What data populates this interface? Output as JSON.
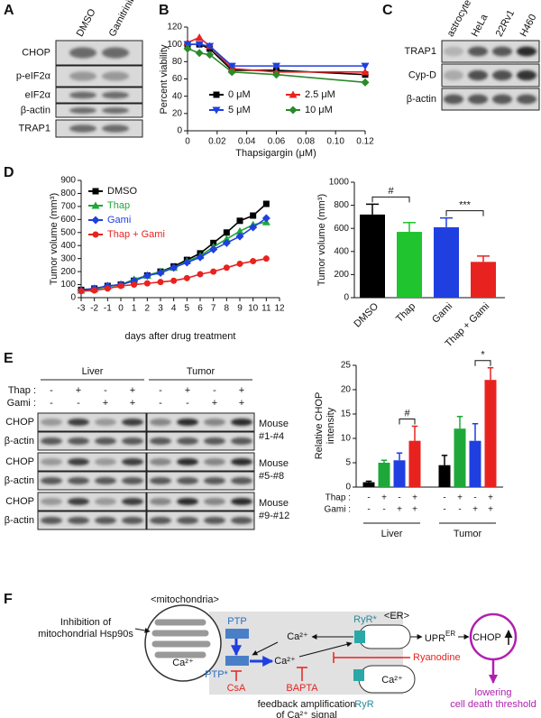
{
  "panel_labels": [
    "A",
    "B",
    "C",
    "D",
    "E",
    "F"
  ],
  "blot_a": {
    "columns": [
      "DMSO",
      "Gamitrinib"
    ],
    "rows": [
      "CHOP",
      "p-eIF2α",
      "eIF2α",
      "β-actin",
      "TRAP1"
    ]
  },
  "blot_c": {
    "columns": [
      "astrocyte",
      "HeLa",
      "22Rv1",
      "H460"
    ],
    "rows": [
      "TRAP1",
      "Cyp-D",
      "β-actin"
    ]
  },
  "blot_e": {
    "groups": [
      "Liver",
      "Tumor"
    ],
    "treatments": [
      {
        "name": "Thap :",
        "signs": [
          "-",
          "+",
          "-",
          "+",
          "-",
          "+",
          "-",
          "+"
        ]
      },
      {
        "name": "Gami :",
        "signs": [
          "-",
          "-",
          "+",
          "+",
          "-",
          "-",
          "+",
          "+"
        ]
      }
    ],
    "rows": [
      "CHOP",
      "β-actin",
      "CHOP",
      "β-actin",
      "CHOP",
      "β-actin"
    ],
    "mice": [
      [
        "Mouse",
        "#1-#4"
      ],
      [
        "Mouse",
        "#5-#8"
      ],
      [
        "Mouse",
        "#9-#12"
      ]
    ]
  },
  "chart_data": [
    {
      "type": "line",
      "ylabel": "Percent viability",
      "xlabel": "Thapsigargin (μM)",
      "xlim": [
        0,
        0.12
      ],
      "xticks": [
        0,
        0.02,
        0.04,
        0.06,
        0.08,
        {
          "value": 0.1,
          "label": "0.10"
        },
        0.12
      ],
      "ylim": [
        0,
        120
      ],
      "yticks": [
        0,
        20,
        40,
        60,
        80,
        100,
        120
      ],
      "x": [
        0,
        0.008,
        0.015,
        0.03,
        0.06,
        0.12
      ],
      "series": [
        {
          "name": "0 μM",
          "color": "#000000",
          "marker": "square",
          "values": [
            100,
            100,
            95,
            70,
            70,
            65
          ]
        },
        {
          "name": "2.5 μM",
          "color": "#e8231f",
          "marker": "triangle",
          "values": [
            102,
            108,
            98,
            72,
            68,
            68
          ]
        },
        {
          "name": "5 μM",
          "color": "#1f3fe0",
          "marker": "triangle-down",
          "values": [
            100,
            100,
            98,
            75,
            75,
            75
          ]
        },
        {
          "name": "10 μM",
          "color": "#2a8a2a",
          "marker": "diamond",
          "values": [
            95,
            90,
            88,
            68,
            65,
            56
          ]
        }
      ]
    },
    {
      "type": "line",
      "ylabel": "Tumor volume (mm³)",
      "xlabel": "days after drug treatment",
      "xlim": [
        -3,
        12
      ],
      "xticks": [
        -3,
        -2,
        -1,
        0,
        1,
        2,
        3,
        4,
        5,
        6,
        7,
        8,
        9,
        10,
        11,
        12
      ],
      "ylim": [
        0,
        900
      ],
      "yticks": [
        0,
        100,
        200,
        300,
        400,
        500,
        600,
        700,
        800,
        900
      ],
      "x": [
        -3,
        -2,
        -1,
        0,
        1,
        2,
        3,
        4,
        5,
        6,
        7,
        8,
        9,
        10,
        11
      ],
      "series": [
        {
          "name": "DMSO",
          "color": "#000000",
          "marker": "square",
          "values": [
            60,
            70,
            90,
            100,
            130,
            170,
            200,
            240,
            290,
            340,
            420,
            500,
            590,
            630,
            720
          ]
        },
        {
          "name": "Thap",
          "color": "#1fa83a",
          "marker": "triangle",
          "values": [
            55,
            65,
            85,
            100,
            140,
            170,
            200,
            230,
            280,
            320,
            390,
            450,
            510,
            560,
            580
          ]
        },
        {
          "name": "Gami",
          "color": "#1f3fe0",
          "marker": "diamond",
          "values": [
            55,
            70,
            90,
            100,
            130,
            170,
            190,
            230,
            270,
            310,
            370,
            420,
            470,
            540,
            610
          ]
        },
        {
          "name": "Thap + Gami",
          "color": "#e8231f",
          "marker": "circle",
          "values": [
            50,
            55,
            70,
            90,
            100,
            110,
            120,
            130,
            150,
            180,
            200,
            230,
            260,
            280,
            300
          ]
        }
      ]
    },
    {
      "type": "bar",
      "ylabel": "Tumor volume (mm³)",
      "categories": [
        "DMSO",
        "Thap",
        "Gami",
        "Thap + Gami"
      ],
      "values": [
        720,
        570,
        610,
        310
      ],
      "errors": [
        90,
        80,
        80,
        50
      ],
      "colors": [
        "#000000",
        "#1fc42f",
        "#1f3fe0",
        "#e8231f"
      ],
      "ylim": [
        0,
        1000
      ],
      "yticks": [
        0,
        200,
        400,
        600,
        800,
        1000
      ],
      "annotations": [
        "#",
        "***"
      ]
    },
    {
      "type": "bar",
      "ylabel": [
        "Relative CHOP",
        "intensity"
      ],
      "categories": [
        null,
        null,
        null,
        null,
        null,
        null,
        null,
        null
      ],
      "values": [
        1,
        5,
        5.5,
        9.5,
        4.5,
        12,
        9.5,
        22
      ],
      "errors": [
        0.2,
        0.5,
        1.5,
        3,
        2,
        2.5,
        3.5,
        2.5
      ],
      "colors": [
        "#000000",
        "#1fa83a",
        "#1f3fe0",
        "#e8231f",
        "#000000",
        "#1fa83a",
        "#1f3fe0",
        "#e8231f"
      ],
      "ylim": [
        0,
        25
      ],
      "yticks": [
        0,
        5,
        10,
        15,
        20,
        25
      ],
      "x_rows": [
        {
          "name": "Thap :",
          "signs": [
            "-",
            "+",
            "-",
            "+",
            "-",
            "+",
            "-",
            "+"
          ]
        },
        {
          "name": "Gami :",
          "signs": [
            "-",
            "-",
            "+",
            "+",
            "-",
            "-",
            "+",
            "+"
          ]
        }
      ],
      "groups": [
        "Liver",
        "Tumor"
      ],
      "annotations": [
        "#",
        "*"
      ]
    }
  ],
  "diagram": {
    "mitochondria_label": "<mitochondria>",
    "er_label": "<ER>",
    "inhibition": [
      "Inhibition of",
      "mitochondrial Hsp90s"
    ],
    "ptp": "PTP",
    "ptp_star": "PTP*",
    "ca_mito": "Ca²⁺",
    "ca_upper": "Ca²⁺",
    "ca_lower": "Ca²⁺",
    "ca_er": "Ca²⁺",
    "ryr_star": "RyR*",
    "ryr": "RyR",
    "upr": {
      "base": "UPR",
      "sup": "ER"
    },
    "chop": "CHOP",
    "ryanodine": "Ryanodine",
    "csa": "CsA",
    "bapta": "BAPTA",
    "outcome": [
      "lowering",
      "cell death threshold"
    ],
    "feedback": [
      "feedback amplification",
      "of Ca²⁺ signal"
    ]
  }
}
